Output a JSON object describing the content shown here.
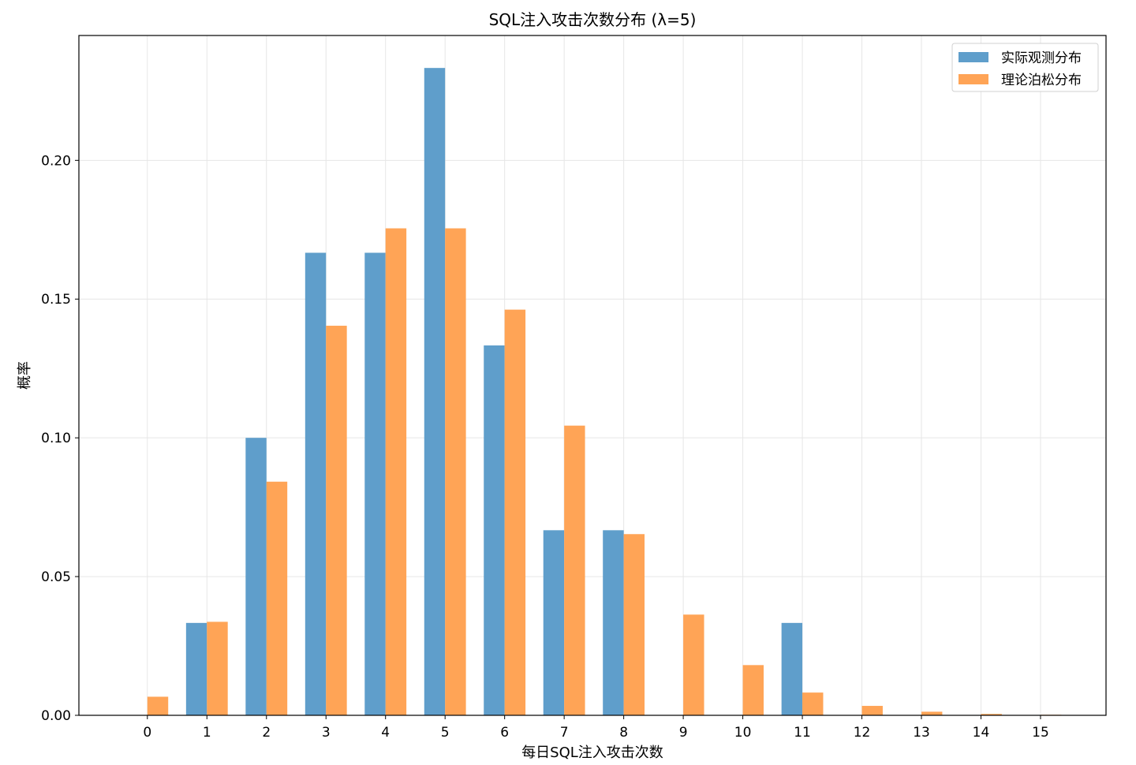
{
  "chart_data": {
    "type": "bar",
    "title": "SQL注入攻击次数分布 (λ=5)",
    "xlabel": "每日SQL注入攻击次数",
    "ylabel": "概率",
    "categories": [
      "0",
      "1",
      "2",
      "3",
      "4",
      "5",
      "6",
      "7",
      "8",
      "9",
      "10",
      "11",
      "12",
      "13",
      "14",
      "15"
    ],
    "series": [
      {
        "name": "实际观测分布",
        "color": "#5f9ecb",
        "values": [
          0.0,
          0.0333,
          0.1,
          0.1667,
          0.1667,
          0.2333,
          0.1333,
          0.0667,
          0.0667,
          0.0,
          0.0,
          0.0333,
          0.0,
          0.0,
          0.0,
          0.0
        ]
      },
      {
        "name": "理论泊松分布",
        "color": "#ffa456",
        "values": [
          0.0067,
          0.0337,
          0.0842,
          0.1404,
          0.1755,
          0.1755,
          0.1462,
          0.1044,
          0.0653,
          0.0363,
          0.0181,
          0.0082,
          0.0034,
          0.0013,
          0.0005,
          0.0002
        ]
      }
    ],
    "yticks": [
      "0.00",
      "0.05",
      "0.10",
      "0.15",
      "0.20"
    ],
    "ylim": [
      0,
      0.245
    ],
    "xlim": [
      -1.15,
      16.1
    ],
    "grid": true,
    "legend": "top-right"
  }
}
